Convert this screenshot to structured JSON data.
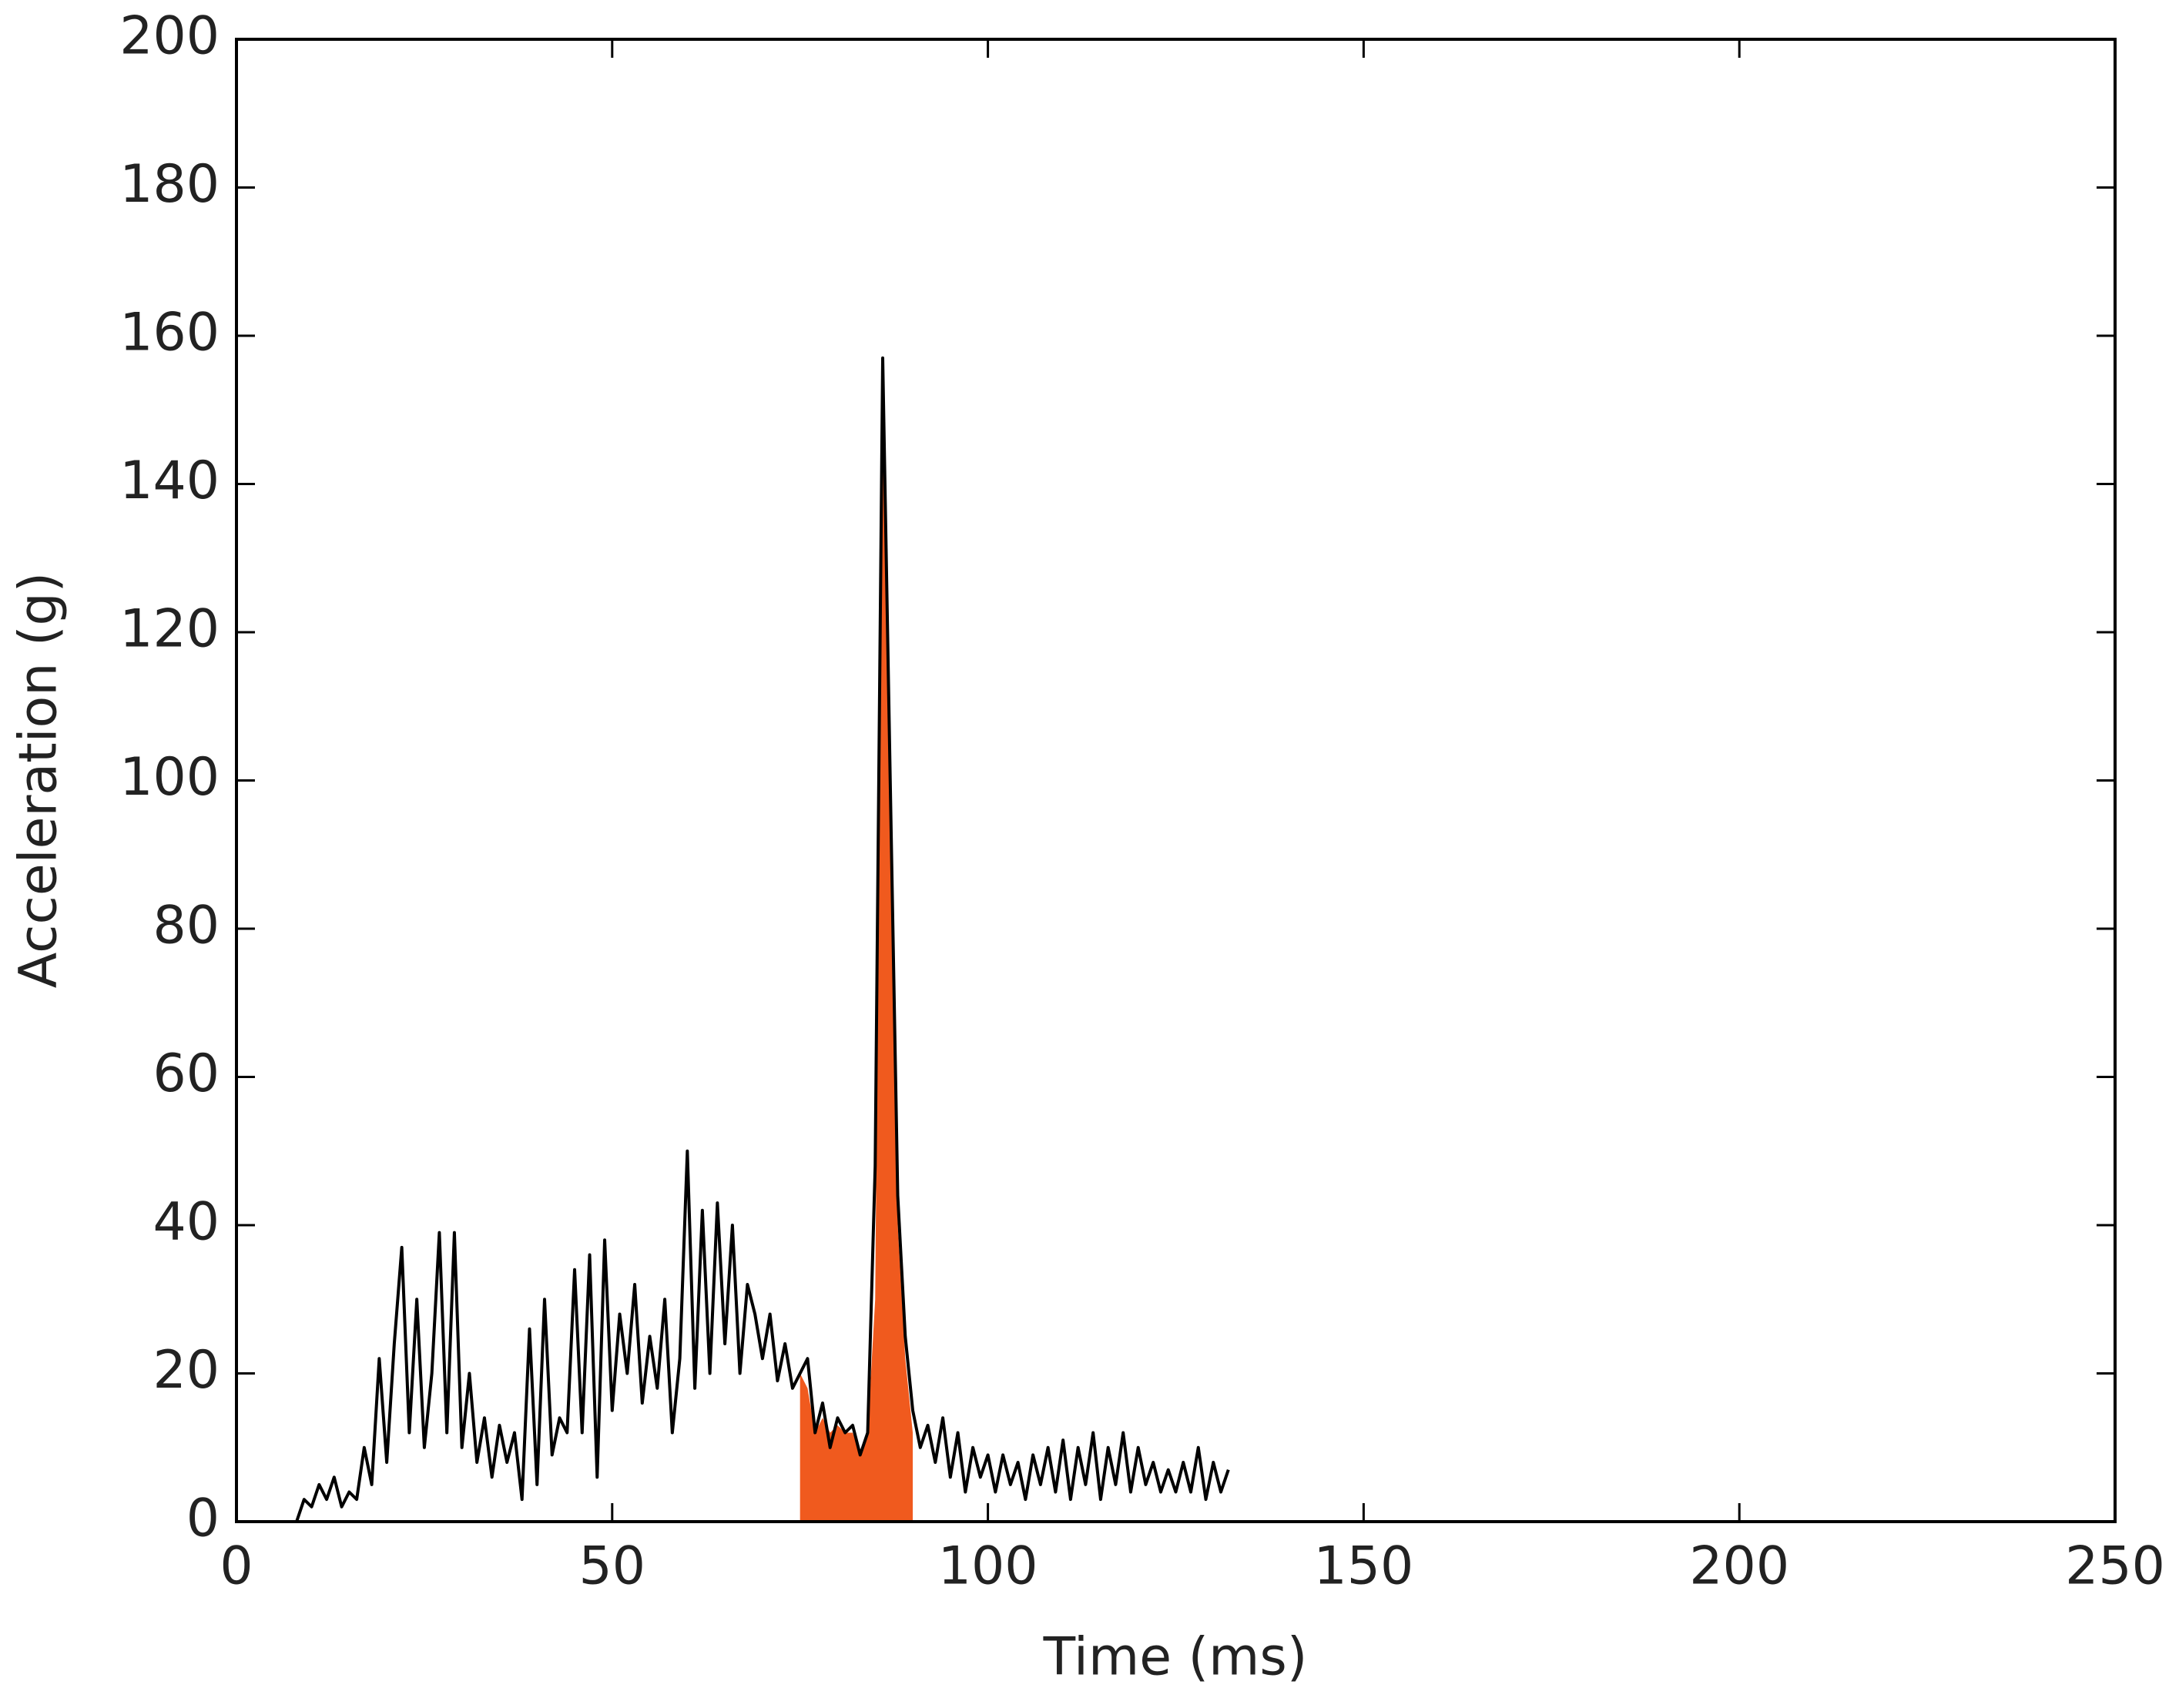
{
  "chart_data": {
    "type": "line",
    "xlabel": "Time (ms)",
    "ylabel": "Acceleration (g)",
    "x": [
      0,
      1,
      2,
      3,
      4,
      5,
      6,
      7,
      8,
      9,
      10,
      11,
      12,
      13,
      14,
      15,
      16,
      17,
      18,
      19,
      20,
      21,
      22,
      23,
      24,
      25,
      26,
      27,
      28,
      29,
      30,
      31,
      32,
      33,
      34,
      35,
      36,
      37,
      38,
      39,
      40,
      41,
      42,
      43,
      44,
      45,
      46,
      47,
      48,
      49,
      50,
      51,
      52,
      53,
      54,
      55,
      56,
      57,
      58,
      59,
      60,
      61,
      62,
      63,
      64,
      65,
      66,
      67,
      68,
      69,
      70,
      71,
      72,
      73,
      74,
      75,
      76,
      77,
      78,
      79,
      80,
      81,
      82,
      83,
      84,
      85,
      86,
      87,
      88,
      89,
      90,
      91,
      92,
      93,
      94,
      95,
      96,
      97,
      98,
      99,
      100,
      101,
      102,
      103,
      104,
      105,
      106,
      107,
      108,
      109,
      110,
      111,
      112,
      113,
      114,
      115,
      116,
      117,
      118,
      119,
      120,
      121,
      122,
      123,
      124,
      125,
      126,
      127,
      128,
      129,
      130,
      131,
      132
    ],
    "series": [
      {
        "color": "#f05a1e",
        "fill": true,
        "values": [
          null,
          null,
          null,
          null,
          null,
          null,
          null,
          null,
          null,
          null,
          null,
          null,
          null,
          null,
          null,
          null,
          null,
          null,
          null,
          null,
          null,
          null,
          null,
          null,
          null,
          null,
          null,
          null,
          null,
          null,
          null,
          null,
          null,
          null,
          null,
          null,
          null,
          null,
          null,
          null,
          null,
          null,
          null,
          null,
          null,
          null,
          null,
          null,
          null,
          null,
          null,
          null,
          null,
          null,
          null,
          null,
          null,
          null,
          null,
          null,
          null,
          null,
          null,
          null,
          null,
          null,
          null,
          null,
          null,
          null,
          null,
          null,
          null,
          null,
          null,
          20,
          18,
          12,
          14,
          12,
          13,
          12,
          12,
          9,
          12,
          30,
          152,
          95,
          40,
          22,
          12,
          null,
          null,
          null,
          null,
          null,
          null,
          null,
          null,
          null,
          null,
          null,
          null,
          null,
          null,
          null,
          null,
          null,
          null,
          null,
          null,
          null,
          null,
          null,
          null,
          null,
          null,
          null,
          null,
          null,
          null,
          null,
          null,
          null,
          null,
          null,
          null,
          null,
          null,
          null,
          null,
          null,
          null
        ]
      },
      {
        "color": "#000000",
        "fill": false,
        "values": [
          0,
          0,
          0,
          0,
          0,
          0,
          0,
          0,
          0,
          3,
          2,
          5,
          3,
          6,
          2,
          4,
          3,
          10,
          5,
          22,
          8,
          24,
          37,
          12,
          30,
          10,
          20,
          39,
          12,
          39,
          10,
          20,
          8,
          14,
          6,
          13,
          8,
          12,
          3,
          26,
          5,
          30,
          9,
          14,
          12,
          34,
          12,
          36,
          6,
          38,
          15,
          28,
          20,
          32,
          16,
          25,
          18,
          30,
          12,
          22,
          50,
          18,
          42,
          20,
          43,
          24,
          40,
          20,
          32,
          28,
          22,
          28,
          19,
          24,
          18,
          20,
          22,
          12,
          16,
          10,
          14,
          12,
          13,
          9,
          12,
          48,
          157,
          100,
          44,
          25,
          15,
          10,
          13,
          8,
          14,
          6,
          12,
          4,
          10,
          6,
          9,
          4,
          9,
          5,
          8,
          3,
          9,
          5,
          10,
          4,
          11,
          3,
          10,
          5,
          12,
          3,
          10,
          5,
          12,
          4,
          10,
          5,
          8,
          4,
          7,
          4,
          8,
          4,
          10,
          3,
          8,
          4,
          7
        ]
      }
    ],
    "xlim": [
      0,
      250
    ],
    "xticks": [
      0,
      50,
      100,
      150,
      200,
      250
    ],
    "ylim": [
      0,
      200
    ],
    "yticks": [
      0,
      20,
      40,
      60,
      80,
      100,
      120,
      140,
      160,
      180,
      200
    ]
  }
}
